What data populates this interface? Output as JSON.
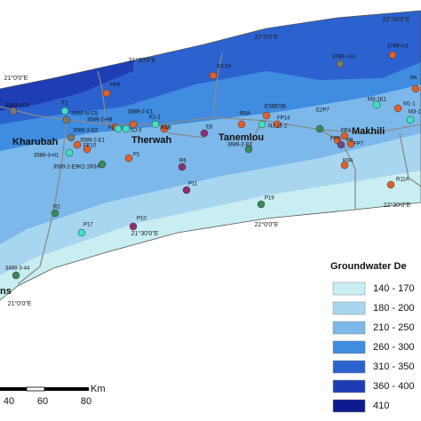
{
  "coordinate_labels": [
    "22°30'0\"E",
    "22°0'0\"E",
    "21°30'0\"E",
    "21°0'0\"E",
    "22°0'0\"E",
    "22°30'0\"E",
    "21°30'0\"E",
    "21°0'0\"E"
  ],
  "towns": [
    "Kharubah",
    "Therwah",
    "Tanemlou",
    "Makhili",
    "ns"
  ],
  "wells": [
    {
      "label": "3789-I-I1",
      "color": "#e0602c"
    },
    {
      "label": "3789-I-G1",
      "color": "#7a7a6a"
    },
    {
      "label": "PA",
      "color": "#e0602c"
    },
    {
      "label": "SJ-19",
      "color": "#e0602c"
    },
    {
      "label": "FP9",
      "color": "#e0602c"
    },
    {
      "label": "M3-1E1",
      "color": "#40e0c0"
    },
    {
      "label": "M1-1",
      "color": "#e0602c"
    },
    {
      "label": "M3-1",
      "color": "#40e0c0"
    },
    {
      "label": "3489-I-C9",
      "color": "#7a7a7a"
    },
    {
      "label": "F1",
      "color": "#40e0c0"
    },
    {
      "label": "3589-IV-C5",
      "color": "#7a7a6a"
    },
    {
      "label": "3589-2-C1",
      "color": "#e0602c"
    },
    {
      "label": "3589-2-H9",
      "color": "#e0602c"
    },
    {
      "label": "F2",
      "color": "#40e0c0"
    },
    {
      "label": "SJ-3",
      "color": "#40e0c0"
    },
    {
      "label": "K1-1",
      "color": "#40e0c0"
    },
    {
      "label": "R4B",
      "color": "#e0602c"
    },
    {
      "label": "ESBESB",
      "color": "#e0602c"
    },
    {
      "label": "R5A",
      "color": "#e0602c"
    },
    {
      "label": "FP14",
      "color": "#e0602c"
    },
    {
      "label": "NJ-15-2",
      "color": "#40e0c0"
    },
    {
      "label": "E2P7",
      "color": "#3a8a5a"
    },
    {
      "label": "E8",
      "color": "#8a3070"
    },
    {
      "label": "FP6",
      "color": "#e0602c"
    },
    {
      "label": "FP4",
      "color": "#e0602c"
    },
    {
      "label": "FP7",
      "color": "#e0602c"
    },
    {
      "label": "P9",
      "color": "#6a4a8a"
    },
    {
      "label": "3589-3-D2",
      "color": "#7a7a6a"
    },
    {
      "label": "3589-2-E1",
      "color": "#e0602c"
    },
    {
      "label": "FP10",
      "color": "#e0602c"
    },
    {
      "label": "3689-2-B1",
      "color": "#3a8a5a"
    },
    {
      "label": "3589-3-H1",
      "color": "#40e0c0"
    },
    {
      "label": "3589-2-E9K2-1R3A",
      "color": "#3a8a5a"
    },
    {
      "label": "P1",
      "color": "#e0602c"
    },
    {
      "label": "R6",
      "color": "#8a3070"
    },
    {
      "label": "R9A",
      "color": "#e0602c"
    },
    {
      "label": "P19",
      "color": "#3a8a5a"
    },
    {
      "label": "R11A",
      "color": "#e0602c"
    },
    {
      "label": "P11",
      "color": "#8a3070"
    },
    {
      "label": "P10",
      "color": "#8a3070"
    },
    {
      "label": "R2",
      "color": "#3a8a5a"
    },
    {
      "label": "P17",
      "color": "#40e0c0"
    },
    {
      "label": "3488-3-44",
      "color": "#3a8a5a"
    }
  ],
  "legend": {
    "title": "Groundwater De",
    "items": [
      {
        "label": "140 - 170",
        "color": "#c8eef2"
      },
      {
        "label": "180 - 200",
        "color": "#a8d6f0"
      },
      {
        "label": "210 - 250",
        "color": "#7cb8ea"
      },
      {
        "label": "260 - 300",
        "color": "#3f8ce0"
      },
      {
        "label": "310 - 350",
        "color": "#2c62cf"
      },
      {
        "label": "360 - 400",
        "color": "#1f3db5"
      },
      {
        "label": "410",
        "color": "#0d1a8f"
      }
    ]
  },
  "scale_bar": {
    "unit": "Km",
    "ticks": [
      "40",
      "60",
      "80"
    ]
  }
}
